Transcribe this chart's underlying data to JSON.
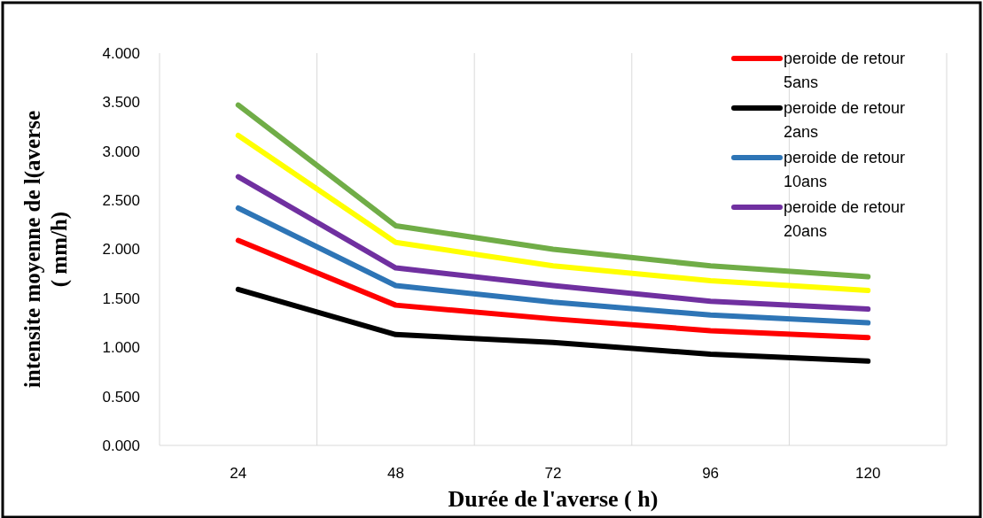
{
  "chart_data": {
    "type": "line",
    "xlabel": "Durée de l'averse ( h)",
    "ylabel": "intensite moyenne de l(averse\n( mm/h)",
    "categories": [
      "24",
      "48",
      "72",
      "96",
      "120"
    ],
    "series": [
      {
        "name": "peroide de retour 5ans",
        "color": "#ff0000",
        "values": [
          2.09,
          1.43,
          1.29,
          1.17,
          1.1
        ]
      },
      {
        "name": "peroide de retour 2ans",
        "color": "#000000",
        "values": [
          1.59,
          1.13,
          1.05,
          0.93,
          0.86
        ]
      },
      {
        "name": "peroide de retour 10ans",
        "color": "#2e75b6",
        "values": [
          2.42,
          1.63,
          1.46,
          1.33,
          1.25
        ]
      },
      {
        "name": "peroide de retour 20ans",
        "color": "#7030a0",
        "values": [
          2.74,
          1.81,
          1.63,
          1.47,
          1.39
        ]
      },
      {
        "color": "#ffff00",
        "values": [
          3.16,
          2.07,
          1.83,
          1.68,
          1.58
        ]
      },
      {
        "color": "#70ad47",
        "values": [
          3.47,
          2.24,
          2.0,
          1.83,
          1.72
        ]
      }
    ],
    "ylim": [
      0,
      4
    ],
    "yticks": [
      {
        "value": 0,
        "label": "0.000"
      },
      {
        "value": 0.5,
        "label": "0.500"
      },
      {
        "value": 1,
        "label": "1.000"
      },
      {
        "value": 1.5,
        "label": "1.500"
      },
      {
        "value": 2,
        "label": "2.000"
      },
      {
        "value": 2.5,
        "label": "2.500"
      },
      {
        "value": 3,
        "label": "3.000"
      },
      {
        "value": 3.5,
        "label": "3.500"
      },
      {
        "value": 4,
        "label": "4.000"
      }
    ],
    "grid": "x",
    "legend": "top right",
    "marker": "none",
    "line_style": "solid"
  }
}
